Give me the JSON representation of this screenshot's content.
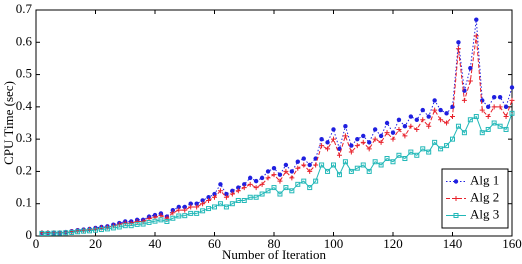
{
  "chart_data": {
    "type": "line",
    "x_label": "Number of Iteration",
    "y_label": "CPU Time (sec)",
    "x": [
      2,
      4,
      6,
      8,
      10,
      12,
      14,
      16,
      18,
      20,
      22,
      24,
      26,
      28,
      30,
      32,
      34,
      36,
      38,
      40,
      42,
      44,
      46,
      48,
      50,
      52,
      54,
      56,
      58,
      60,
      62,
      64,
      66,
      68,
      70,
      72,
      74,
      76,
      78,
      80,
      82,
      84,
      86,
      88,
      90,
      92,
      94,
      96,
      98,
      100,
      102,
      104,
      106,
      108,
      110,
      112,
      114,
      116,
      118,
      120,
      122,
      124,
      126,
      128,
      130,
      132,
      134,
      136,
      138,
      140,
      142,
      144,
      146,
      148,
      150,
      152,
      154,
      156,
      158,
      160
    ],
    "series": [
      {
        "name": "Alg 1",
        "color": "#1f1fe0",
        "marker": "dot",
        "line_style": "dotted",
        "values": [
          0.01,
          0.01,
          0.01,
          0.01,
          0.012,
          0.015,
          0.018,
          0.02,
          0.022,
          0.025,
          0.028,
          0.03,
          0.035,
          0.04,
          0.045,
          0.045,
          0.05,
          0.05,
          0.06,
          0.065,
          0.07,
          0.06,
          0.08,
          0.09,
          0.09,
          0.1,
          0.1,
          0.11,
          0.12,
          0.13,
          0.16,
          0.13,
          0.14,
          0.15,
          0.16,
          0.18,
          0.17,
          0.18,
          0.2,
          0.21,
          0.19,
          0.22,
          0.2,
          0.23,
          0.24,
          0.22,
          0.24,
          0.3,
          0.29,
          0.33,
          0.27,
          0.34,
          0.28,
          0.3,
          0.31,
          0.29,
          0.33,
          0.31,
          0.35,
          0.32,
          0.36,
          0.34,
          0.37,
          0.36,
          0.39,
          0.37,
          0.42,
          0.39,
          0.38,
          0.4,
          0.6,
          0.45,
          0.52,
          0.67,
          0.42,
          0.4,
          0.43,
          0.43,
          0.4,
          0.46
        ]
      },
      {
        "name": "Alg 2",
        "color": "#e8202a",
        "marker": "plus",
        "line_style": "dashed",
        "values": [
          0.01,
          0.01,
          0.01,
          0.01,
          0.011,
          0.013,
          0.016,
          0.018,
          0.02,
          0.022,
          0.025,
          0.027,
          0.031,
          0.036,
          0.04,
          0.04,
          0.045,
          0.045,
          0.054,
          0.058,
          0.063,
          0.055,
          0.072,
          0.08,
          0.08,
          0.09,
          0.09,
          0.1,
          0.11,
          0.12,
          0.14,
          0.12,
          0.13,
          0.14,
          0.15,
          0.16,
          0.15,
          0.16,
          0.18,
          0.19,
          0.17,
          0.2,
          0.18,
          0.21,
          0.22,
          0.2,
          0.22,
          0.28,
          0.27,
          0.3,
          0.25,
          0.31,
          0.26,
          0.28,
          0.29,
          0.27,
          0.3,
          0.29,
          0.32,
          0.3,
          0.33,
          0.31,
          0.34,
          0.33,
          0.36,
          0.34,
          0.39,
          0.36,
          0.35,
          0.37,
          0.58,
          0.42,
          0.48,
          0.62,
          0.39,
          0.37,
          0.4,
          0.4,
          0.37,
          0.42
        ]
      },
      {
        "name": "Alg 3",
        "color": "#22b8b8",
        "marker": "square",
        "line_style": "solid",
        "values": [
          0.008,
          0.008,
          0.009,
          0.009,
          0.01,
          0.011,
          0.013,
          0.015,
          0.016,
          0.018,
          0.02,
          0.022,
          0.025,
          0.028,
          0.032,
          0.032,
          0.036,
          0.037,
          0.042,
          0.046,
          0.05,
          0.045,
          0.055,
          0.062,
          0.063,
          0.07,
          0.07,
          0.078,
          0.085,
          0.09,
          0.1,
          0.09,
          0.1,
          0.11,
          0.11,
          0.12,
          0.12,
          0.13,
          0.14,
          0.15,
          0.13,
          0.15,
          0.14,
          0.16,
          0.17,
          0.15,
          0.17,
          0.22,
          0.2,
          0.22,
          0.19,
          0.23,
          0.2,
          0.21,
          0.22,
          0.2,
          0.23,
          0.22,
          0.24,
          0.23,
          0.25,
          0.24,
          0.26,
          0.25,
          0.27,
          0.26,
          0.29,
          0.27,
          0.28,
          0.3,
          0.34,
          0.32,
          0.36,
          0.37,
          0.32,
          0.33,
          0.35,
          0.34,
          0.33,
          0.38
        ]
      }
    ],
    "xlim": [
      0,
      160
    ],
    "xticks": [
      0,
      20,
      40,
      60,
      80,
      100,
      120,
      140,
      160
    ],
    "ylim": [
      0,
      0.7
    ],
    "yticks": [
      0,
      0.1,
      0.2,
      0.3,
      0.4,
      0.5,
      0.6,
      0.7
    ],
    "grid": false,
    "legend": "lower right"
  }
}
